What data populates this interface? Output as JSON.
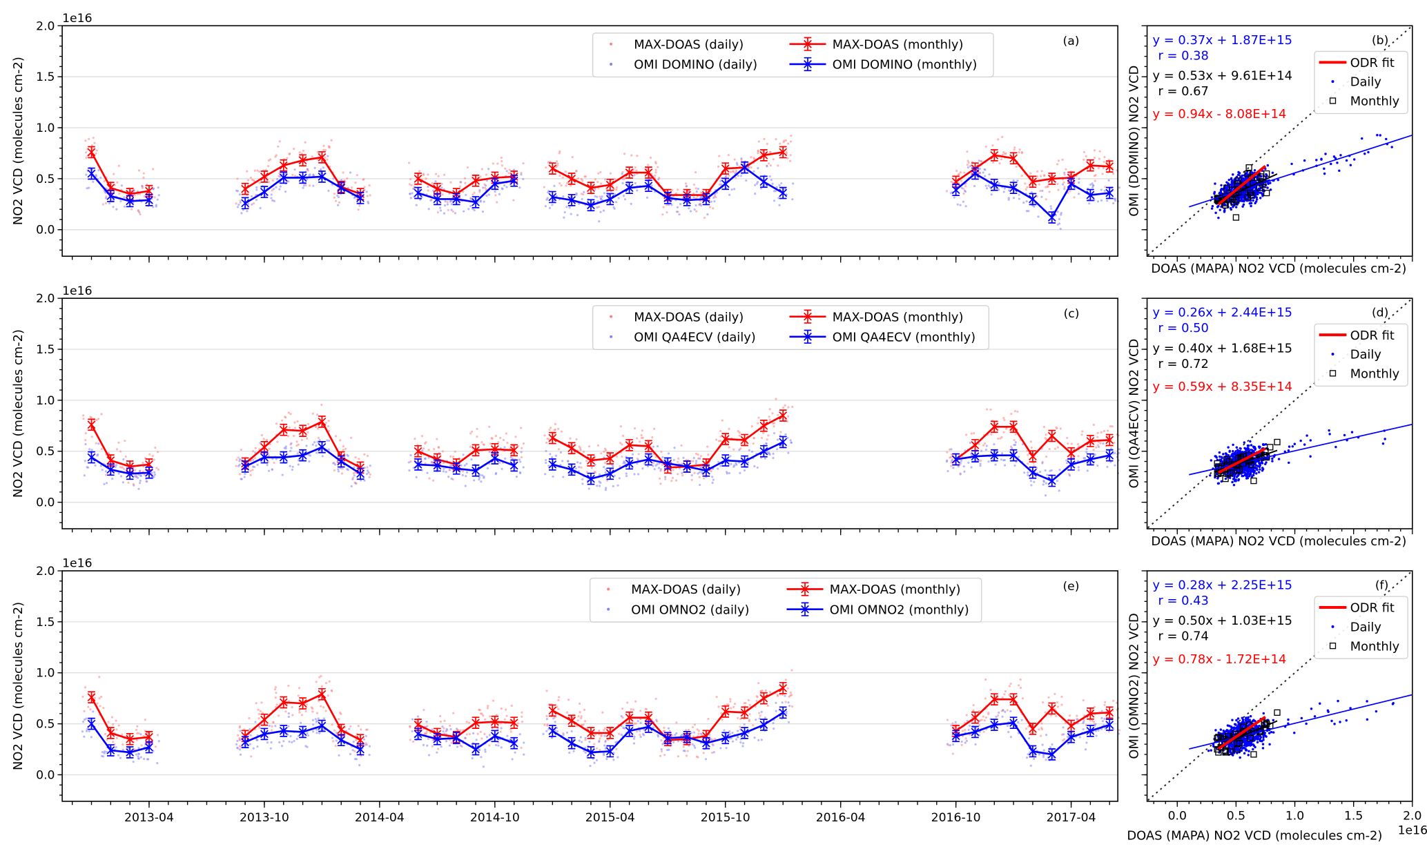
{
  "chart_data": [
    {
      "type": "line",
      "panel_label": "(a)",
      "ylabel": "NO2 VCD (molecules cm-2)",
      "y_multiplier": "1e16",
      "ylim": [
        -0.25,
        2.0
      ],
      "yticks": [
        "0.0",
        "0.5",
        "1.0",
        "1.5",
        "2.0"
      ],
      "xticks": [
        "2013-04",
        "2013-10",
        "2014-04",
        "2014-10",
        "2015-04",
        "2015-10",
        "2016-04",
        "2016-10",
        "2017-04"
      ],
      "xlim": [
        "2012-11",
        "2017-06"
      ],
      "grid": true,
      "legend_placement": "top-right",
      "legend": [
        "MAX-DOAS (daily)",
        "OMI DOMINO (daily)",
        "MAX-DOAS (monthly)",
        "OMI DOMINO (monthly)"
      ],
      "series": [
        {
          "name": "MAX-DOAS (monthly)",
          "color": "#ff0000",
          "months": [
            "2013-01",
            "2013-02",
            "2013-03",
            "2013-04",
            "2013-09",
            "2013-10",
            "2013-11",
            "2013-12",
            "2014-01",
            "2014-02",
            "2014-03",
            "2014-06",
            "2014-07",
            "2014-08",
            "2014-09",
            "2014-10",
            "2014-11",
            "2015-01",
            "2015-02",
            "2015-03",
            "2015-04",
            "2015-05",
            "2015-06",
            "2015-07",
            "2015-08",
            "2015-09",
            "2015-10",
            "2015-11",
            "2015-12",
            "2016-01",
            "2016-10",
            "2016-11",
            "2016-12",
            "2017-01",
            "2017-02",
            "2017-03",
            "2017-04",
            "2017-05",
            "2017-06"
          ],
          "values": [
            0.76,
            0.41,
            0.35,
            0.38,
            0.4,
            0.52,
            0.63,
            0.68,
            0.71,
            0.42,
            0.35,
            0.5,
            0.4,
            0.35,
            0.48,
            0.51,
            0.52,
            0.6,
            0.5,
            0.41,
            0.44,
            0.56,
            0.56,
            0.34,
            0.34,
            0.34,
            0.6,
            0.61,
            0.73,
            0.76,
            0.47,
            0.6,
            0.73,
            0.7,
            0.47,
            0.5,
            0.51,
            0.63,
            0.62
          ]
        },
        {
          "name": "OMI DOMINO (monthly)",
          "color": "#0000ff",
          "months": [
            "2013-01",
            "2013-02",
            "2013-03",
            "2013-04",
            "2013-09",
            "2013-10",
            "2013-11",
            "2013-12",
            "2014-01",
            "2014-02",
            "2014-03",
            "2014-06",
            "2014-07",
            "2014-08",
            "2014-09",
            "2014-10",
            "2014-11",
            "2015-01",
            "2015-02",
            "2015-03",
            "2015-04",
            "2015-05",
            "2015-06",
            "2015-07",
            "2015-08",
            "2015-09",
            "2015-10",
            "2015-11",
            "2015-12",
            "2016-01",
            "2016-10",
            "2016-11",
            "2016-12",
            "2017-01",
            "2017-02",
            "2017-03",
            "2017-04",
            "2017-05",
            "2017-06"
          ],
          "values": [
            0.55,
            0.33,
            0.28,
            0.29,
            0.26,
            0.37,
            0.51,
            0.51,
            0.52,
            0.41,
            0.31,
            0.36,
            0.3,
            0.3,
            0.27,
            0.45,
            0.48,
            0.32,
            0.29,
            0.24,
            0.3,
            0.41,
            0.43,
            0.31,
            0.29,
            0.3,
            0.45,
            0.61,
            0.47,
            0.36,
            0.39,
            0.55,
            0.44,
            0.41,
            0.3,
            0.12,
            0.45,
            0.34,
            0.36
          ]
        }
      ]
    },
    {
      "type": "scatter",
      "panel_label": "(b)",
      "xlabel": "DOAS (MAPA) NO2 VCD (molecules cm-2)",
      "ylabel": "OMI (DOMINO) NO2 VCD",
      "xlim": [
        -0.25,
        2.0
      ],
      "ylim": [
        -0.25,
        2.0
      ],
      "fits": [
        {
          "text": "y = 0.37x + 1.87E+15",
          "r": "r = 0.38",
          "slope": 0.37,
          "intercept": 0.187,
          "color": "#0000ff"
        },
        {
          "text": "y = 0.53x + 9.61E+14",
          "r": "r = 0.67",
          "slope": 0.53,
          "intercept": 0.0961,
          "color": "#000000"
        },
        {
          "text": "y = 0.94x - 8.08E+14",
          "slope": 0.94,
          "intercept": -0.0808,
          "color": "#ff0000"
        }
      ],
      "legend": [
        "ODR fit",
        "Daily",
        "Monthly"
      ]
    },
    {
      "type": "line",
      "panel_label": "(c)",
      "ylabel": "NO2 VCD (molecules cm-2)",
      "y_multiplier": "1e16",
      "ylim": [
        -0.25,
        2.0
      ],
      "yticks": [
        "0.0",
        "0.5",
        "1.0",
        "1.5",
        "2.0"
      ],
      "xlim": [
        "2012-11",
        "2017-06"
      ],
      "grid": true,
      "legend_placement": "top-right",
      "legend": [
        "MAX-DOAS (daily)",
        "OMI QA4ECV (daily)",
        "MAX-DOAS (monthly)",
        "OMI QA4ECV (monthly)"
      ],
      "series": [
        {
          "name": "MAX-DOAS (monthly)",
          "color": "#ff0000",
          "values": [
            0.76,
            0.41,
            0.35,
            0.37,
            0.38,
            0.54,
            0.71,
            0.7,
            0.79,
            0.44,
            0.34,
            0.5,
            0.42,
            0.37,
            0.51,
            0.52,
            0.51,
            0.63,
            0.53,
            0.41,
            0.43,
            0.56,
            0.55,
            0.34,
            0.35,
            0.37,
            0.62,
            0.61,
            0.75,
            0.85,
            0.42,
            0.56,
            0.74,
            0.74,
            0.45,
            0.65,
            0.48,
            0.6,
            0.61
          ]
        },
        {
          "name": "OMI QA4ECV (monthly)",
          "color": "#0000ff",
          "values": [
            0.44,
            0.32,
            0.28,
            0.29,
            0.35,
            0.44,
            0.44,
            0.46,
            0.54,
            0.4,
            0.28,
            0.37,
            0.36,
            0.33,
            0.31,
            0.43,
            0.36,
            0.37,
            0.32,
            0.23,
            0.28,
            0.38,
            0.42,
            0.38,
            0.35,
            0.31,
            0.41,
            0.4,
            0.5,
            0.59,
            0.42,
            0.45,
            0.46,
            0.46,
            0.29,
            0.21,
            0.37,
            0.42,
            0.46
          ]
        }
      ]
    },
    {
      "type": "scatter",
      "panel_label": "(d)",
      "ylabel": "OMI (QA4ECV) NO2 VCD",
      "xlabel": "DOAS (MAPA) NO2 VCD (molecules cm-2)",
      "fits": [
        {
          "text": "y = 0.26x + 2.44E+15",
          "r": "r = 0.50",
          "slope": 0.26,
          "intercept": 0.244,
          "color": "#0000ff"
        },
        {
          "text": "y = 0.40x + 1.68E+15",
          "r": "r = 0.72",
          "slope": 0.4,
          "intercept": 0.168,
          "color": "#000000"
        },
        {
          "text": "y = 0.59x + 8.35E+14",
          "slope": 0.59,
          "intercept": 0.0835,
          "color": "#ff0000"
        }
      ],
      "legend": [
        "ODR fit",
        "Daily",
        "Monthly"
      ]
    },
    {
      "type": "line",
      "panel_label": "(e)",
      "ylabel": "NO2 VCD (molecules cm-2)",
      "y_multiplier": "1e16",
      "ylim": [
        -0.25,
        2.0
      ],
      "yticks": [
        "0.0",
        "0.5",
        "1.0",
        "1.5",
        "2.0"
      ],
      "xlim": [
        "2012-11",
        "2017-06"
      ],
      "grid": true,
      "legend_placement": "top-right",
      "legend": [
        "MAX-DOAS (daily)",
        "OMI OMNO2 (daily)",
        "MAX-DOAS (monthly)",
        "OMI OMNO2 (monthly)"
      ],
      "series": [
        {
          "name": "MAX-DOAS (monthly)",
          "color": "#ff0000",
          "values": [
            0.76,
            0.41,
            0.35,
            0.37,
            0.38,
            0.54,
            0.71,
            0.7,
            0.79,
            0.44,
            0.34,
            0.49,
            0.4,
            0.37,
            0.51,
            0.52,
            0.51,
            0.63,
            0.53,
            0.41,
            0.41,
            0.56,
            0.56,
            0.34,
            0.35,
            0.38,
            0.62,
            0.61,
            0.75,
            0.85,
            0.43,
            0.56,
            0.74,
            0.74,
            0.45,
            0.65,
            0.48,
            0.6,
            0.61
          ]
        },
        {
          "name": "OMI OMNO2 (monthly)",
          "color": "#0000ff",
          "values": [
            0.5,
            0.24,
            0.22,
            0.27,
            0.32,
            0.4,
            0.43,
            0.42,
            0.48,
            0.34,
            0.25,
            0.4,
            0.35,
            0.36,
            0.25,
            0.38,
            0.31,
            0.43,
            0.31,
            0.22,
            0.23,
            0.43,
            0.47,
            0.36,
            0.37,
            0.31,
            0.36,
            0.41,
            0.49,
            0.61,
            0.38,
            0.42,
            0.49,
            0.51,
            0.23,
            0.2,
            0.37,
            0.43,
            0.49
          ]
        }
      ]
    },
    {
      "type": "scatter",
      "panel_label": "(f)",
      "ylabel": "OMI (OMNO2) NO2 VCD",
      "xlabel": "DOAS (MAPA) NO2 VCD (molecules cm-2)",
      "x_multiplier": "1e16",
      "xticks": [
        "0.0",
        "0.5",
        "1.0",
        "1.5",
        "2.0"
      ],
      "fits": [
        {
          "text": "y = 0.28x + 2.25E+15",
          "r": "r = 0.43",
          "slope": 0.28,
          "intercept": 0.225,
          "color": "#0000ff"
        },
        {
          "text": "y = 0.50x + 1.03E+15",
          "r": "r = 0.74",
          "slope": 0.5,
          "intercept": 0.103,
          "color": "#000000"
        },
        {
          "text": "y = 0.78x - 1.72E+14",
          "slope": 0.78,
          "intercept": -0.0172,
          "color": "#ff0000"
        }
      ],
      "legend": [
        "ODR fit",
        "Daily",
        "Monthly"
      ]
    }
  ]
}
